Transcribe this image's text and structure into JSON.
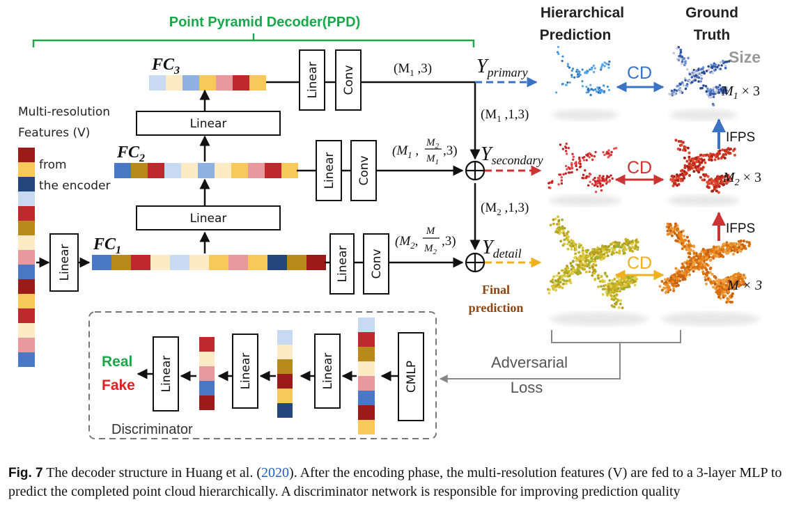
{
  "colors": {
    "green": "#1aa84a",
    "blue_arrow": "#3a73c6",
    "red_arrow": "#cc3333",
    "yellow_arrow": "#f0b020",
    "real": "#1aa84a",
    "fake": "#e02020",
    "final_prediction": "#8b4513",
    "cells": {
      "r": "#c0282d",
      "dr": "#9b1b1b",
      "y": "#f7c95a",
      "ly": "#fcebc4",
      "lb": "#c7daf2",
      "mb": "#8fb1e0",
      "b": "#4a78c5",
      "db": "#24467d",
      "o": "#b8891b",
      "p": "#e8999d"
    }
  },
  "labels": {
    "ppd_title": "Point Pyramid Decoder(PPD)",
    "hierarchical": "Hierarchical",
    "prediction": "Prediction",
    "ground": "Ground",
    "truth": "Truth",
    "size": "Size",
    "mrf_line1": "Multi-resolution",
    "mrf_line2": "Features (V)",
    "from": "from",
    "the_encoder": "the encoder",
    "linear": "Linear",
    "conv": "Conv",
    "cmlp": "CMLP",
    "fc3": "FC",
    "fc3_sub": "3",
    "fc2": "FC",
    "fc2_sub": "2",
    "fc1": "FC",
    "fc1_sub": "1",
    "m1_3": "(M",
    "m1_3_sub": "1",
    "m1_3_tail": " ,3)",
    "m1_1_3": "(M",
    "m1_1_3_sub": "1",
    "m1_1_3_tail": " ,1,3)",
    "m2_1_3": "(M",
    "m2_1_3_sub": "2",
    "m2_1_3_tail": " ,1,3)",
    "y": "Y",
    "y_primary": "primary",
    "y_secondary": "secondary",
    "y_detail": "detail",
    "cd": "CD",
    "ifps": "IFPS",
    "m1x3": "M",
    "m1x3_sub": "1",
    "m1x3_tail": " × 3",
    "m2x3": "M",
    "m2x3_sub": "2",
    "m2x3_tail": " × 3",
    "mx3": "M × 3",
    "final_line1": "Final",
    "final_line2": "prediction",
    "adversarial": "Adversarial",
    "loss": "Loss",
    "real": "Real",
    "fake": "Fake",
    "discriminator": "Discriminator"
  },
  "caption": {
    "label": "Fig. 7",
    "text_before": "  The decoder structure in Huang et al. (",
    "year": "2020",
    "text_after": "). After the encoding phase, the multi-resolution features (V) are fed to a 3-layer MLP to predict the completed point cloud hierarchically. A discriminator network is responsible for improving prediction quality"
  }
}
